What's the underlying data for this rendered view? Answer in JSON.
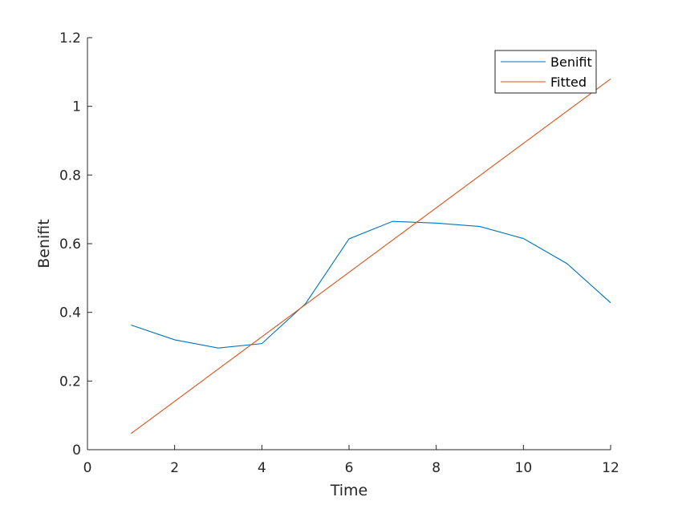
{
  "chart_data": {
    "type": "line",
    "title": "",
    "xlabel": "Time",
    "ylabel": "Benifit",
    "xlim": [
      0,
      12
    ],
    "ylim": [
      0,
      1.2
    ],
    "xticks": [
      0,
      2,
      4,
      6,
      8,
      10,
      12
    ],
    "yticks": [
      0,
      0.2,
      0.4,
      0.6,
      0.8,
      1,
      1.2
    ],
    "xtick_labels": [
      "0",
      "2",
      "4",
      "6",
      "8",
      "10",
      "12"
    ],
    "ytick_labels": [
      "0",
      "0.2",
      "0.4",
      "0.6",
      "0.8",
      "1",
      "1.2"
    ],
    "grid": false,
    "legend_position": "top-right",
    "series": [
      {
        "name": "Benifit",
        "color": "#0072BD",
        "x": [
          1,
          2,
          3,
          4,
          5,
          6,
          7,
          8,
          9,
          10,
          11,
          12
        ],
        "values": [
          0.363,
          0.32,
          0.296,
          0.309,
          0.425,
          0.614,
          0.665,
          0.66,
          0.65,
          0.615,
          0.542,
          0.428
        ]
      },
      {
        "name": "Fitted",
        "color": "#D95319",
        "x": [
          1,
          12
        ],
        "values": [
          0.047,
          1.08
        ]
      }
    ]
  }
}
